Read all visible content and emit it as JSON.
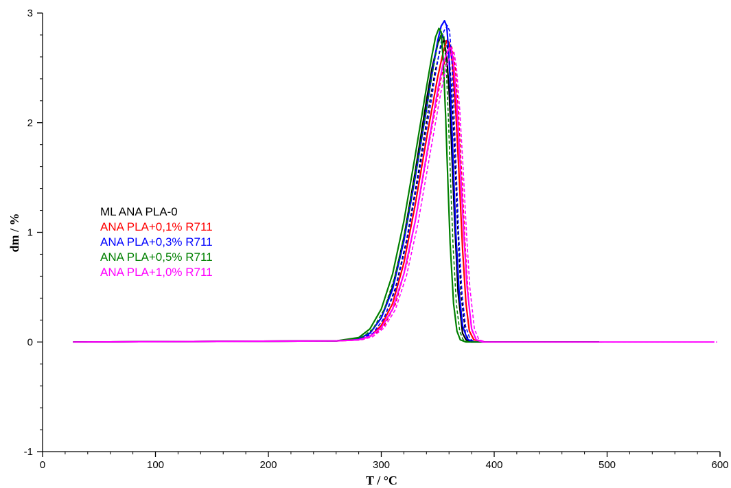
{
  "chart_data": {
    "type": "line",
    "xlabel": "T / °C",
    "ylabel": "dm / %",
    "xlim": [
      0,
      600
    ],
    "ylim": [
      -1,
      3
    ],
    "xticks": [
      0,
      100,
      200,
      300,
      400,
      500,
      600
    ],
    "yticks": [
      -1,
      0,
      1,
      2,
      3
    ],
    "legend_position": "left",
    "series": [
      {
        "name": "ML ANA PLA-0",
        "color": "#000000",
        "x": [
          27,
          260,
          280,
          290,
          300,
          310,
          320,
          330,
          340,
          345,
          350,
          353,
          355,
          358,
          360,
          362,
          365,
          368,
          372,
          375,
          380,
          400,
          493
        ],
        "y": [
          0,
          0.01,
          0.03,
          0.08,
          0.22,
          0.5,
          0.95,
          1.55,
          2.2,
          2.5,
          2.72,
          2.8,
          2.78,
          2.6,
          2.3,
          1.85,
          1.1,
          0.45,
          0.08,
          0.02,
          0,
          0,
          0
        ]
      },
      {
        "name": "ANA PLA+0,1% R711",
        "color": "#ff0000",
        "x": [
          27,
          260,
          280,
          290,
          300,
          310,
          320,
          330,
          340,
          350,
          355,
          358,
          360,
          363,
          366,
          369,
          372,
          375,
          378,
          382,
          390,
          493
        ],
        "y": [
          0,
          0.01,
          0.02,
          0.05,
          0.15,
          0.35,
          0.72,
          1.25,
          1.85,
          2.42,
          2.65,
          2.75,
          2.73,
          2.55,
          2.1,
          1.5,
          0.85,
          0.35,
          0.1,
          0.02,
          0,
          0
        ]
      },
      {
        "name": "ANA PLA+0,3% R711",
        "color": "#0000ff",
        "x": [
          27,
          260,
          280,
          290,
          300,
          310,
          320,
          330,
          340,
          345,
          350,
          353,
          356,
          358,
          360,
          362,
          364,
          366,
          369,
          372,
          376,
          380,
          390,
          493
        ],
        "y": [
          0,
          0.01,
          0.03,
          0.08,
          0.22,
          0.48,
          0.92,
          1.5,
          2.12,
          2.45,
          2.75,
          2.88,
          2.93,
          2.88,
          2.6,
          2.1,
          1.55,
          1.0,
          0.45,
          0.15,
          0.03,
          0,
          0,
          0
        ]
      },
      {
        "name": "ANA PLA+0,5% R711",
        "color": "#008000",
        "x": [
          27,
          260,
          280,
          290,
          300,
          310,
          320,
          330,
          340,
          345,
          348,
          351,
          353,
          355,
          357,
          359,
          361,
          364,
          367,
          370,
          375,
          390,
          493
        ],
        "y": [
          0,
          0.01,
          0.04,
          0.12,
          0.3,
          0.62,
          1.1,
          1.7,
          2.32,
          2.62,
          2.78,
          2.86,
          2.83,
          2.55,
          2.05,
          1.45,
          0.9,
          0.35,
          0.1,
          0.02,
          0,
          0,
          0
        ]
      },
      {
        "name": "ANA PLA+1,0% R711",
        "color": "#ff00ff",
        "x": [
          27,
          260,
          280,
          290,
          300,
          310,
          320,
          330,
          340,
          350,
          355,
          360,
          362,
          364,
          367,
          370,
          373,
          376,
          380,
          384,
          390,
          400,
          595
        ],
        "y": [
          0,
          0.01,
          0.02,
          0.05,
          0.13,
          0.3,
          0.62,
          1.1,
          1.7,
          2.3,
          2.55,
          2.68,
          2.68,
          2.55,
          2.15,
          1.6,
          1.0,
          0.5,
          0.12,
          0.02,
          0,
          0,
          0
        ]
      }
    ]
  }
}
